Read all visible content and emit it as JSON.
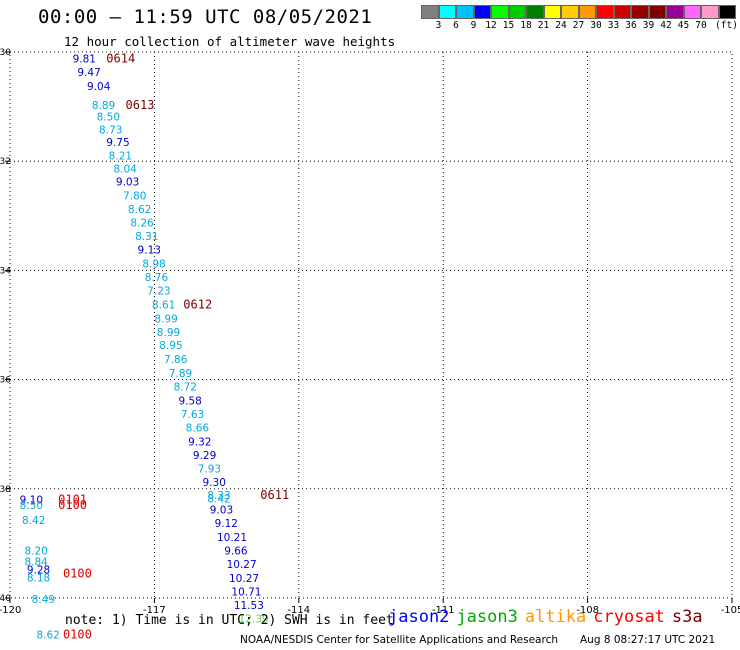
{
  "header": {
    "title": "00:00 – 11:59 UTC 08/05/2021",
    "subtitle": "12 hour collection of altimeter wave heights"
  },
  "color_scale": {
    "colors": [
      "#808080",
      "#00ffff",
      "#00bfff",
      "#0000ff",
      "#00ff00",
      "#00cc00",
      "#008000",
      "#ffff00",
      "#ffcc00",
      "#ff9900",
      "#ff0000",
      "#cc0000",
      "#990000",
      "#800000",
      "#990099",
      "#ff66ff",
      "#ff99cc",
      "#000000"
    ],
    "labels": [
      "3",
      "6",
      "9",
      "12",
      "15",
      "18",
      "21",
      "24",
      "27",
      "30",
      "33",
      "36",
      "39",
      "42",
      "45",
      "70",
      "(ft)"
    ]
  },
  "map": {
    "x_ticks": [
      "-120",
      "-117",
      "-114",
      "-111",
      "-108",
      "-105"
    ],
    "y_ticks": [
      "30",
      "32",
      "34",
      "36",
      "38",
      "40"
    ]
  },
  "chart_data": {
    "type": "scatter",
    "xlabel": "",
    "ylabel": "",
    "xlim": [
      -120,
      -105
    ],
    "ylim": [
      30,
      40
    ],
    "grid": true,
    "points": [
      {
        "lon": -118.7,
        "lat": 30.12,
        "value": "9.81",
        "color": "#0000cc"
      },
      {
        "lon": -118.6,
        "lat": 30.37,
        "value": "9.47",
        "color": "#0000cc"
      },
      {
        "lon": -118.4,
        "lat": 30.62,
        "value": "9.04",
        "color": "#0000cc"
      },
      {
        "lon": -118.3,
        "lat": 30.97,
        "value": "8.89",
        "color": "#00aadd"
      },
      {
        "lon": -118.2,
        "lat": 31.18,
        "value": "8.50",
        "color": "#00aadd"
      },
      {
        "lon": -118.15,
        "lat": 31.42,
        "value": "8.73",
        "color": "#00aadd"
      },
      {
        "lon": -118.0,
        "lat": 31.65,
        "value": "9.75",
        "color": "#0000cc"
      },
      {
        "lon": -117.95,
        "lat": 31.9,
        "value": "8.21",
        "color": "#00aadd"
      },
      {
        "lon": -117.85,
        "lat": 32.13,
        "value": "8.04",
        "color": "#00aadd"
      },
      {
        "lon": -117.8,
        "lat": 32.37,
        "value": "9.03",
        "color": "#0000cc"
      },
      {
        "lon": -117.65,
        "lat": 32.63,
        "value": "7.80",
        "color": "#00aadd"
      },
      {
        "lon": -117.55,
        "lat": 32.88,
        "value": "8.62",
        "color": "#00aadd"
      },
      {
        "lon": -117.5,
        "lat": 33.12,
        "value": "8.26",
        "color": "#00aadd"
      },
      {
        "lon": -117.4,
        "lat": 33.37,
        "value": "8.31",
        "color": "#00aadd"
      },
      {
        "lon": -117.35,
        "lat": 33.62,
        "value": "9.13",
        "color": "#0000cc"
      },
      {
        "lon": -117.25,
        "lat": 33.87,
        "value": "8.98",
        "color": "#00aadd"
      },
      {
        "lon": -117.2,
        "lat": 34.12,
        "value": "8.76",
        "color": "#00aadd"
      },
      {
        "lon": -117.15,
        "lat": 34.37,
        "value": "7.23",
        "color": "#00aadd"
      },
      {
        "lon": -117.05,
        "lat": 34.62,
        "value": "8.61",
        "color": "#00aadd"
      },
      {
        "lon": -117.0,
        "lat": 34.88,
        "value": "8.99",
        "color": "#00aadd"
      },
      {
        "lon": -116.95,
        "lat": 35.13,
        "value": "8.99",
        "color": "#00aadd"
      },
      {
        "lon": -116.9,
        "lat": 35.37,
        "value": "8.95",
        "color": "#00aadd"
      },
      {
        "lon": -116.8,
        "lat": 35.62,
        "value": "7.86",
        "color": "#00aadd"
      },
      {
        "lon": -116.7,
        "lat": 35.88,
        "value": "7.89",
        "color": "#00aadd"
      },
      {
        "lon": -116.6,
        "lat": 36.13,
        "value": "8.72",
        "color": "#00aadd"
      },
      {
        "lon": -116.5,
        "lat": 36.38,
        "value": "9.58",
        "color": "#0000cc"
      },
      {
        "lon": -116.45,
        "lat": 36.63,
        "value": "7.63",
        "color": "#00aadd"
      },
      {
        "lon": -116.35,
        "lat": 36.88,
        "value": "8.66",
        "color": "#00aadd"
      },
      {
        "lon": -116.3,
        "lat": 37.13,
        "value": "9.32",
        "color": "#0000cc"
      },
      {
        "lon": -116.2,
        "lat": 37.38,
        "value": "9.29",
        "color": "#0000cc"
      },
      {
        "lon": -116.1,
        "lat": 37.63,
        "value": "7.93",
        "color": "#00aadd"
      },
      {
        "lon": -116.0,
        "lat": 37.88,
        "value": "9.30",
        "color": "#0000cc"
      },
      {
        "lon": -115.9,
        "lat": 38.11,
        "value": "8.33",
        "color": "#00aadd"
      },
      {
        "lon": -115.9,
        "lat": 38.18,
        "value": "8.42",
        "color": "#00aadd"
      },
      {
        "lon": -115.85,
        "lat": 38.38,
        "value": "9.03",
        "color": "#0000cc"
      },
      {
        "lon": -115.75,
        "lat": 38.63,
        "value": "9.12",
        "color": "#0000cc"
      },
      {
        "lon": -115.7,
        "lat": 38.88,
        "value": "10.21",
        "color": "#0000cc"
      },
      {
        "lon": -115.55,
        "lat": 39.13,
        "value": "9.66",
        "color": "#0000cc"
      },
      {
        "lon": -115.5,
        "lat": 39.38,
        "value": "10.27",
        "color": "#0000cc"
      },
      {
        "lon": -115.45,
        "lat": 39.63,
        "value": "10.27",
        "color": "#0000cc"
      },
      {
        "lon": -115.4,
        "lat": 39.88,
        "value": "10.71",
        "color": "#0000cc"
      },
      {
        "lon": -115.35,
        "lat": 40.13,
        "value": "11.53",
        "color": "#0000cc"
      },
      {
        "lon": -115.25,
        "lat": 40.38,
        "value": "12.39",
        "color": "#55dd55"
      },
      {
        "lon": -119.8,
        "lat": 38.2,
        "value": "9.10",
        "color": "#0000cc"
      },
      {
        "lon": -119.8,
        "lat": 38.3,
        "value": "8.50",
        "color": "#00aadd"
      },
      {
        "lon": -119.75,
        "lat": 38.57,
        "value": "8.42",
        "color": "#00aadd"
      },
      {
        "lon": -119.7,
        "lat": 39.13,
        "value": "8.20",
        "color": "#00aadd"
      },
      {
        "lon": -119.7,
        "lat": 39.33,
        "value": "8.84",
        "color": "#00aadd"
      },
      {
        "lon": -119.65,
        "lat": 39.48,
        "value": "9.28",
        "color": "#0000cc"
      },
      {
        "lon": -119.65,
        "lat": 39.62,
        "value": "8.18",
        "color": "#00aadd"
      },
      {
        "lon": -119.55,
        "lat": 40.02,
        "value": "8.49",
        "color": "#00aadd"
      },
      {
        "lon": -119.45,
        "lat": 40.67,
        "value": "8.62",
        "color": "#00aadd"
      }
    ],
    "time_labels": [
      {
        "lon": -118.0,
        "lat": 30.12,
        "text": "0614",
        "color": "#800000"
      },
      {
        "lon": -117.6,
        "lat": 30.97,
        "text": "0613",
        "color": "#800000"
      },
      {
        "lon": -116.4,
        "lat": 34.62,
        "text": "0612",
        "color": "#800000"
      },
      {
        "lon": -114.8,
        "lat": 38.11,
        "text": "0611",
        "color": "#800000"
      },
      {
        "lon": -119.0,
        "lat": 38.2,
        "text": "0101",
        "color": "#dd0000"
      },
      {
        "lon": -119.0,
        "lat": 38.3,
        "text": "0100",
        "color": "#dd0000"
      },
      {
        "lon": -118.9,
        "lat": 39.55,
        "text": "0100",
        "color": "#dd0000"
      },
      {
        "lon": -118.9,
        "lat": 40.67,
        "text": "0100",
        "color": "#dd0000"
      }
    ]
  },
  "footer": {
    "note": "note: 1) Time is in UTC; 2) SWH is in feet",
    "satellites": [
      {
        "name": "jason2",
        "color": "#0000ff"
      },
      {
        "name": "jason3",
        "color": "#00aa00"
      },
      {
        "name": "altika",
        "color": "#ff9900"
      },
      {
        "name": "cryosat",
        "color": "#ff0000"
      },
      {
        "name": "s3a",
        "color": "#800000"
      }
    ],
    "credit": "NOAA/NESDIS Center for Satellite Applications and Research",
    "timestamp": "Aug  8 08:27:17 UTC 2021"
  }
}
